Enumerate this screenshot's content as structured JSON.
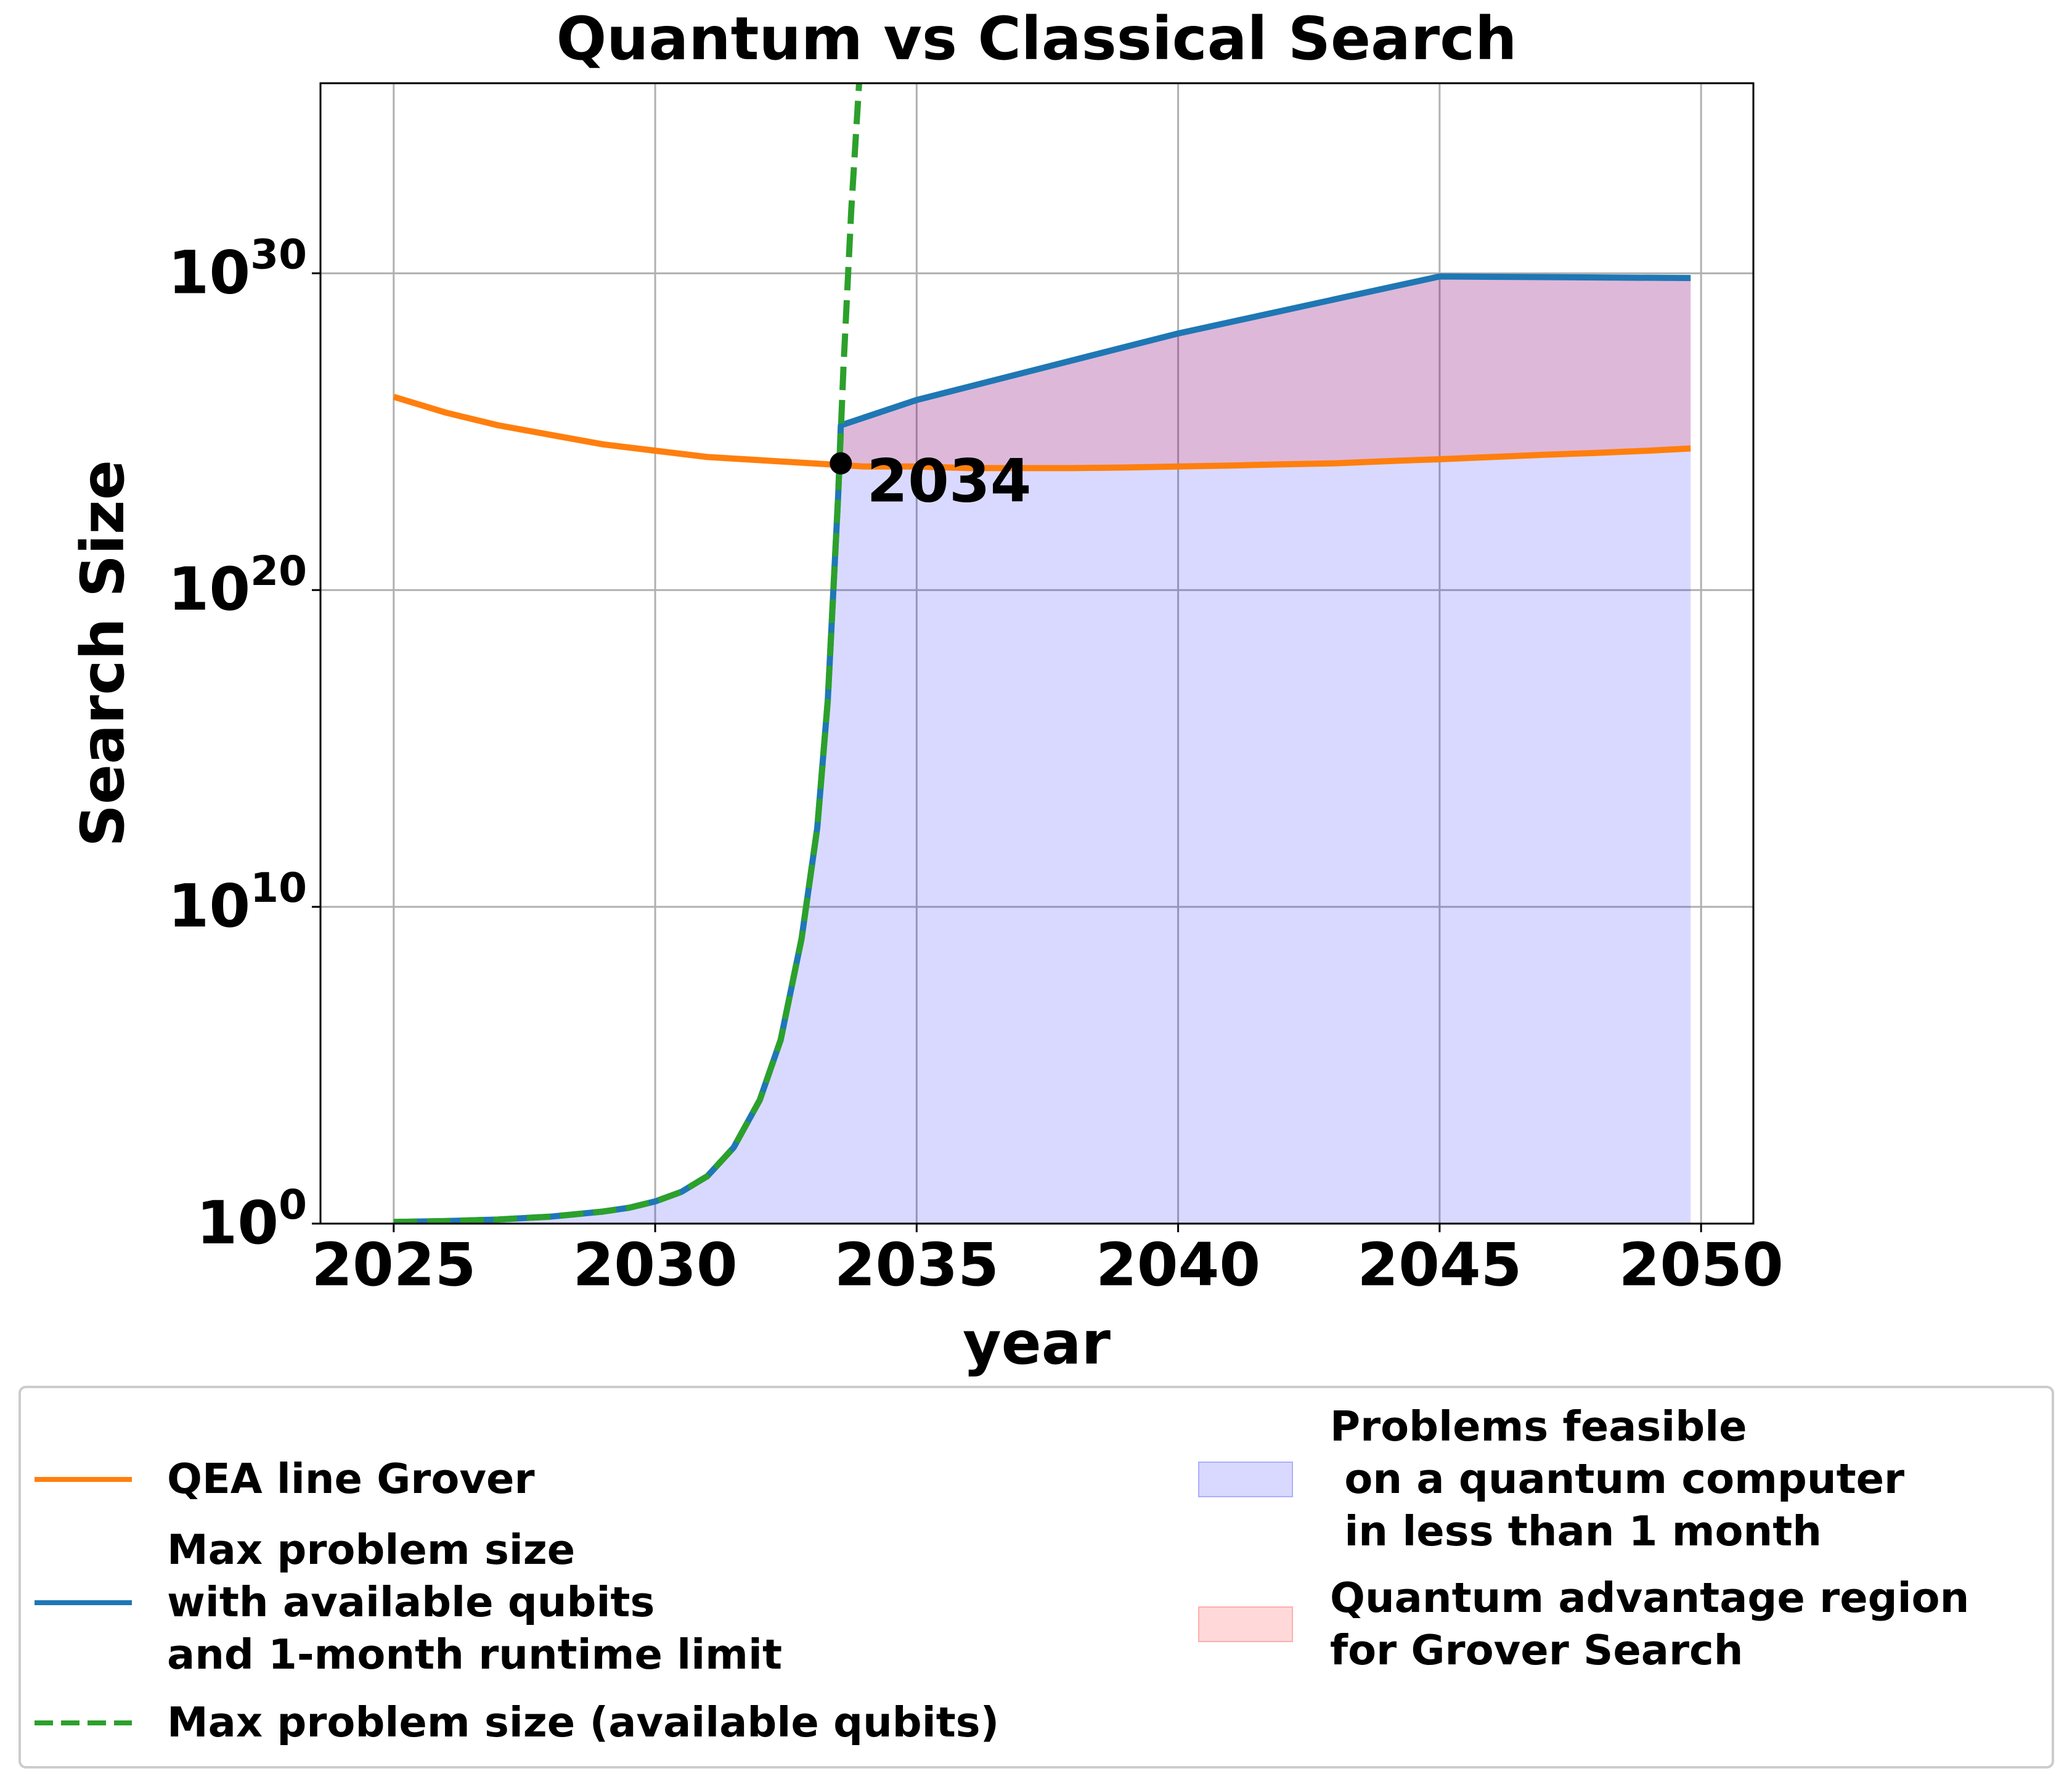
{
  "chart_data": {
    "type": "line",
    "title": "Quantum vs Classical Search",
    "xlabel": "year",
    "ylabel": "Search Size",
    "x_range": [
      2023.6,
      2051.0
    ],
    "y_scale": "log",
    "y_range_exponent": [
      0,
      36
    ],
    "x_ticks": [
      {
        "value": 2025,
        "label": "2025"
      },
      {
        "value": 2030,
        "label": "2030"
      },
      {
        "value": 2035,
        "label": "2035"
      },
      {
        "value": 2040,
        "label": "2040"
      },
      {
        "value": 2045,
        "label": "2045"
      },
      {
        "value": 2050,
        "label": "2050"
      }
    ],
    "y_ticks": [
      {
        "exponent": 0,
        "base": "10",
        "sup": "0"
      },
      {
        "exponent": 10,
        "base": "10",
        "sup": "10"
      },
      {
        "exponent": 20,
        "base": "10",
        "sup": "20"
      },
      {
        "exponent": 30,
        "base": "10",
        "sup": "30"
      }
    ],
    "grid": true,
    "legend_position": "below plot",
    "series": [
      {
        "name": "QEA line Grover",
        "color": "#ff7f0e",
        "style": "solid",
        "x": [
          2025,
          2026,
          2027,
          2028,
          2029,
          2030,
          2031,
          2032,
          2033,
          2034,
          2035,
          2036,
          2037,
          2038,
          2039,
          2040,
          2041,
          2042,
          2043,
          2044,
          2045,
          2046,
          2047,
          2048,
          2049,
          2049.8
        ],
        "log10_y": [
          26.1,
          25.6,
          25.2,
          24.9,
          24.6,
          24.4,
          24.2,
          24.1,
          24.0,
          23.9,
          23.9,
          23.85,
          23.85,
          23.85,
          23.87,
          23.9,
          23.93,
          23.97,
          24.0,
          24.07,
          24.13,
          24.2,
          24.27,
          24.33,
          24.4,
          24.47
        ]
      },
      {
        "name": "Max problem size\nwith available qubits\nand 1-month runtime limit",
        "color": "#1f77b4",
        "style": "solid",
        "x": [
          2025,
          2026,
          2027,
          2028,
          2029,
          2029.5,
          2030,
          2030.5,
          2031,
          2031.5,
          2032,
          2032.4,
          2032.8,
          2033.1,
          2033.3,
          2033.5,
          2033.55,
          2035,
          2040,
          2045,
          2049.8
        ],
        "log10_y": [
          0.05,
          0.08,
          0.13,
          0.22,
          0.38,
          0.5,
          0.7,
          1.0,
          1.5,
          2.4,
          3.9,
          5.8,
          9.0,
          12.5,
          16.5,
          23.0,
          25.2,
          26.0,
          28.1,
          29.9,
          29.85
        ]
      },
      {
        "name": "Max problem size (available qubits)",
        "color": "#2ca02c",
        "style": "dashed",
        "x": [
          2025,
          2026,
          2027,
          2028,
          2029,
          2029.5,
          2030,
          2030.5,
          2031,
          2031.5,
          2032,
          2032.4,
          2032.8,
          2033.1,
          2033.3,
          2033.5,
          2033.6,
          2033.75,
          2033.9
        ],
        "log10_y": [
          0.05,
          0.08,
          0.13,
          0.22,
          0.38,
          0.5,
          0.7,
          1.0,
          1.5,
          2.4,
          3.9,
          5.8,
          9.0,
          12.5,
          16.5,
          23.0,
          27.0,
          32.0,
          36.0
        ]
      }
    ],
    "regions": [
      {
        "name": "Problems feasible\n on a quantum computer\n in less than 1 month",
        "color": "#0000ff",
        "alpha": 0.15,
        "bounded_by": "Max problem size with available qubits and 1-month runtime limit"
      },
      {
        "name": "Quantum advantage region\nfor Grover Search",
        "color": "#ff0000",
        "alpha": 0.15,
        "between": [
          "QEA line Grover",
          "Max problem size with available qubits and 1-month runtime limit"
        ],
        "from_x": 2033.55
      }
    ],
    "annotation": {
      "label": "2034",
      "x": 2033.55,
      "log10_y": 24.0
    }
  }
}
